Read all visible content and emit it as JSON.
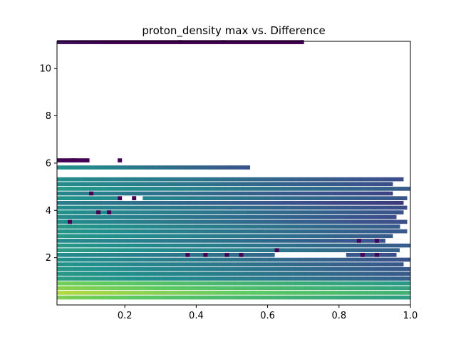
{
  "chart_data": {
    "type": "heatmap",
    "title": "proton_density max vs. Difference",
    "xlabel": "",
    "ylabel": "",
    "xlim": [
      0.01,
      1.0
    ],
    "ylim": [
      0.0,
      11.15
    ],
    "xticks": [
      "0.2",
      "0.4",
      "0.6",
      "0.8",
      "1.0"
    ],
    "xtick_values": [
      0.2,
      0.4,
      0.6,
      0.8,
      1.0
    ],
    "yticks": [
      "2",
      "4",
      "6",
      "8",
      "10"
    ],
    "ytick_values": [
      2,
      4,
      6,
      8,
      10
    ],
    "colormap": "viridis",
    "colors": {
      "low": "#440154",
      "mid_low": "#3b528b",
      "mid": "#21918c",
      "mid_high": "#5ec962",
      "high": "#fde725"
    },
    "grid": false,
    "rows": [
      {
        "y": 0.3,
        "x": [
          0.01,
          1.0
        ],
        "level": 0.8
      },
      {
        "y": 0.5,
        "x": [
          0.01,
          1.0
        ],
        "level": 0.85
      },
      {
        "y": 0.7,
        "x": [
          0.01,
          1.0
        ],
        "level": 0.82
      },
      {
        "y": 0.9,
        "x": [
          0.01,
          1.0
        ],
        "level": 0.75
      },
      {
        "y": 1.1,
        "x": [
          0.01,
          1.0
        ],
        "level": 0.55
      },
      {
        "y": 1.3,
        "x": [
          0.01,
          1.0
        ],
        "level": 0.5
      },
      {
        "y": 1.5,
        "x": [
          0.01,
          1.0
        ],
        "level": 0.52
      },
      {
        "y": 1.7,
        "x": [
          0.01,
          0.98
        ],
        "level": 0.48
      },
      {
        "y": 1.9,
        "x": [
          0.01,
          1.0
        ],
        "level": 0.5
      },
      {
        "y": 2.1,
        "x": [
          0.01,
          0.96
        ],
        "level": 0.45
      },
      {
        "y": 2.3,
        "x": [
          0.01,
          0.98
        ],
        "level": 0.55
      },
      {
        "y": 2.5,
        "x": [
          0.01,
          1.0
        ],
        "level": 0.5
      },
      {
        "y": 2.7,
        "x": [
          0.01,
          0.98
        ],
        "level": 0.48
      },
      {
        "y": 2.9,
        "x": [
          0.01,
          0.95
        ],
        "level": 0.5
      },
      {
        "y": 3.1,
        "x": [
          0.01,
          0.99
        ],
        "level": 0.52
      },
      {
        "y": 3.3,
        "x": [
          0.01,
          0.97
        ],
        "level": 0.5
      },
      {
        "y": 3.5,
        "x": [
          0.01,
          0.99
        ],
        "level": 0.48
      },
      {
        "y": 3.7,
        "x": [
          0.01,
          0.96
        ],
        "level": 0.45
      },
      {
        "y": 3.9,
        "x": [
          0.01,
          0.98
        ],
        "level": 0.5
      },
      {
        "y": 4.1,
        "x": [
          0.01,
          0.99
        ],
        "level": 0.45
      },
      {
        "y": 4.3,
        "x": [
          0.01,
          0.98
        ],
        "level": 0.42
      },
      {
        "y": 4.5,
        "x": [
          0.01,
          0.99
        ],
        "level": 0.48
      },
      {
        "y": 4.7,
        "x": [
          0.01,
          0.95
        ],
        "level": 0.45
      },
      {
        "y": 4.9,
        "x": [
          0.01,
          1.0
        ],
        "level": 0.5
      },
      {
        "y": 5.1,
        "x": [
          0.01,
          0.95
        ],
        "level": 0.48
      },
      {
        "y": 5.3,
        "x": [
          0.01,
          0.98
        ],
        "level": 0.45
      },
      {
        "y": 5.8,
        "x": [
          0.01,
          0.55
        ],
        "level": 0.5
      },
      {
        "y": 6.1,
        "x": [
          0.01,
          0.1
        ],
        "level": 0.0
      },
      {
        "y": 11.1,
        "x": [
          0.01,
          0.7
        ],
        "level": 0.05
      }
    ],
    "low_cells": [
      {
        "y": 2.1,
        "x": 0.37
      },
      {
        "y": 2.1,
        "x": 0.42
      },
      {
        "y": 2.1,
        "x": 0.48
      },
      {
        "y": 2.1,
        "x": 0.52
      },
      {
        "y": 2.1,
        "x": 0.86
      },
      {
        "y": 2.1,
        "x": 0.9
      },
      {
        "y": 2.3,
        "x": 0.62
      },
      {
        "y": 2.7,
        "x": 0.85
      },
      {
        "y": 2.7,
        "x": 0.9
      },
      {
        "y": 3.5,
        "x": 0.04
      },
      {
        "y": 3.9,
        "x": 0.12
      },
      {
        "y": 3.9,
        "x": 0.15
      },
      {
        "y": 4.5,
        "x": 0.18
      },
      {
        "y": 4.5,
        "x": 0.22
      },
      {
        "y": 4.7,
        "x": 0.1
      },
      {
        "y": 6.1,
        "x": 0.05
      },
      {
        "y": 6.1,
        "x": 0.18
      },
      {
        "y": 11.1,
        "x": 0.35
      },
      {
        "y": 11.1,
        "x": 0.47
      },
      {
        "y": 11.1,
        "x": 0.69
      }
    ],
    "gaps": [
      {
        "y": 2.1,
        "x": [
          0.62,
          0.82
        ]
      },
      {
        "y": 2.3,
        "x": [
          0.97,
          1.0
        ]
      },
      {
        "y": 2.7,
        "x": [
          0.93,
          1.0
        ]
      },
      {
        "y": 4.5,
        "x": [
          0.18,
          0.25
        ]
      }
    ]
  }
}
